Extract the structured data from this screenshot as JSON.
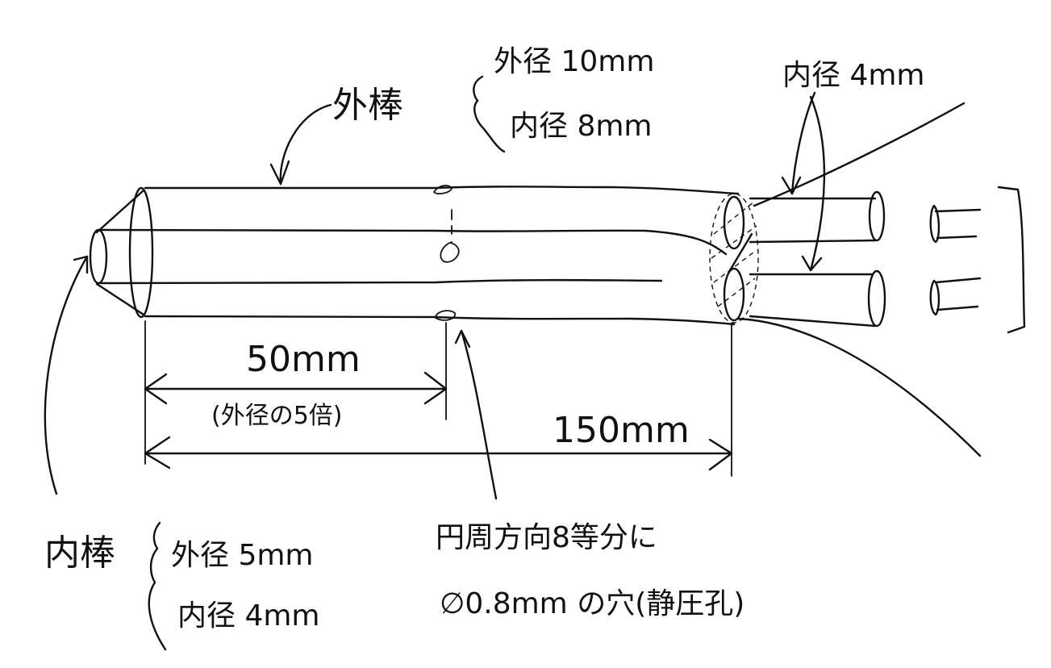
{
  "outer_rod": {
    "name": "外棒",
    "outer_diameter": "外径 10mm",
    "inner_diameter": "内径 8mm"
  },
  "inner_rod": {
    "name": "内棒",
    "outer_diameter": "外径 5mm",
    "inner_diameter": "内径 4mm"
  },
  "outlet": {
    "inner_diameter": "内径 4mm"
  },
  "dimensions": {
    "short_length": "50mm",
    "short_note": "(外径の5倍)",
    "long_length": "150mm"
  },
  "static_hole": {
    "line1": "円周方向8等分に",
    "line2": "∅0.8mm の穴(静圧孔)"
  }
}
